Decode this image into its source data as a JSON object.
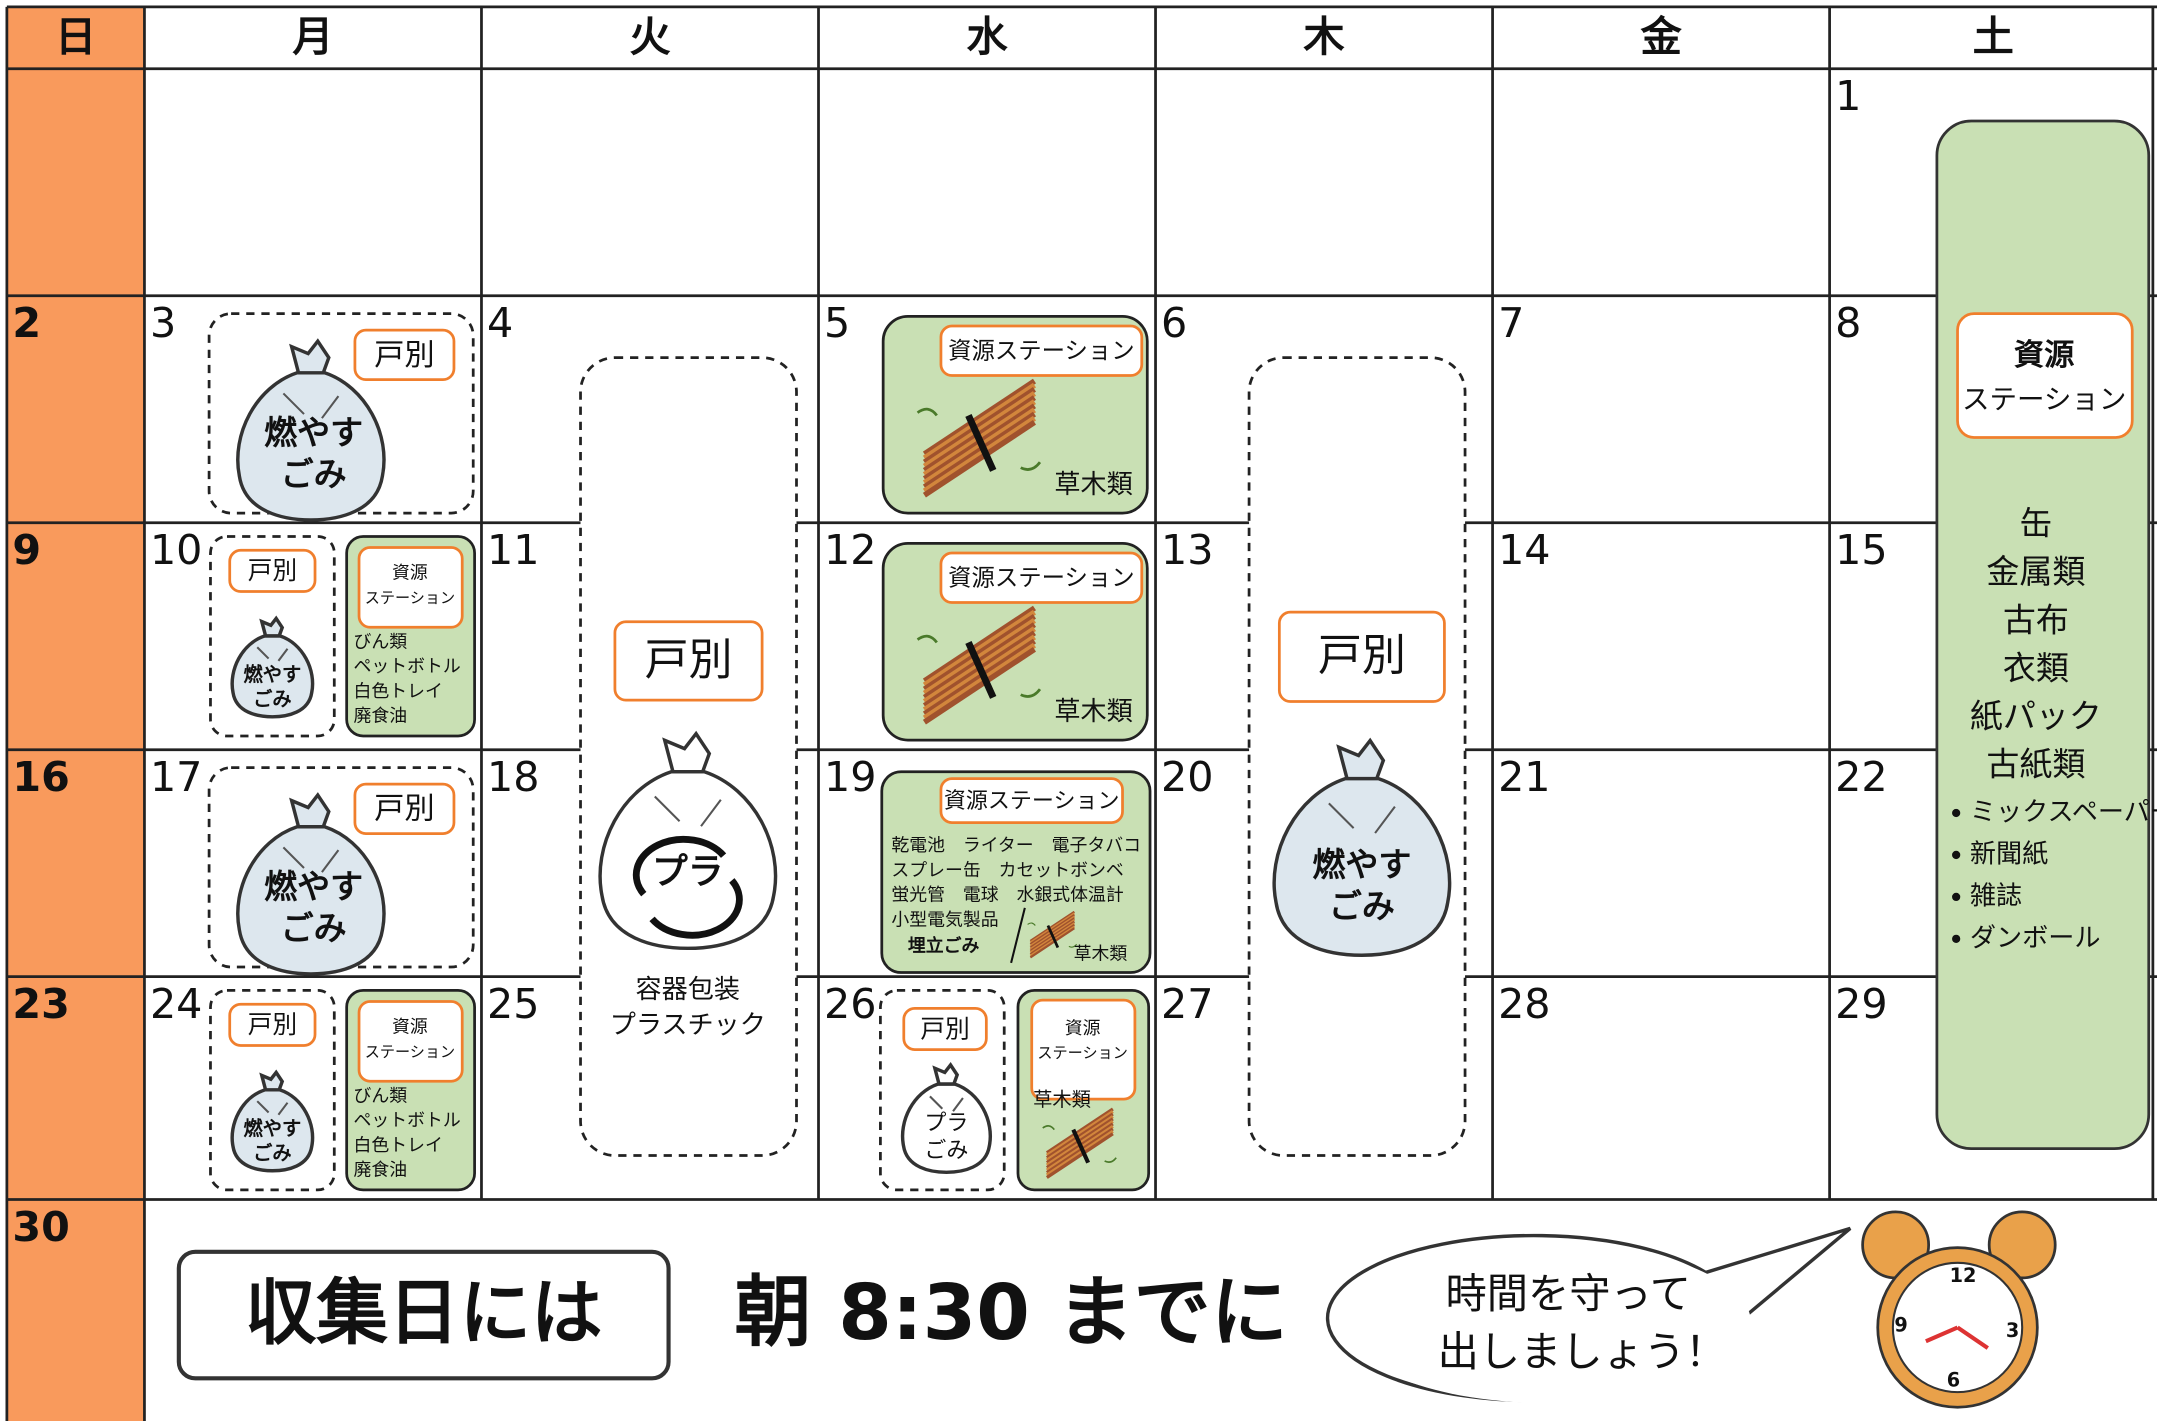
{
  "weekdays": [
    "日",
    "月",
    "火",
    "水",
    "木",
    "金",
    "土"
  ],
  "days": [
    1,
    2,
    3,
    4,
    5,
    6,
    7,
    8,
    9,
    10,
    11,
    12,
    13,
    14,
    15,
    16,
    17,
    18,
    19,
    20,
    21,
    22,
    23,
    24,
    25,
    26,
    27,
    28,
    29,
    30
  ],
  "events": [
    {
      "tag": "戸別",
      "bag": [
        "燃やす",
        "ごみ"
      ]
    },
    {
      "tag": "戸別",
      "bag": [
        "燃やす",
        "ごみ"
      ],
      "station": [
        "資源",
        "ステーション"
      ],
      "items": [
        "びん類",
        "ペットボトル",
        "白色トレイ",
        "廃食油"
      ]
    },
    {
      "tag": "戸別",
      "bag": [
        "燃やす",
        "ごみ"
      ]
    },
    {
      "tag": "戸別",
      "bag": [
        "燃やす",
        "ごみ"
      ],
      "station": [
        "資源",
        "ステーション"
      ],
      "items": [
        "びん類",
        "ペットボトル",
        "白色トレイ",
        "廃食油"
      ]
    },
    {
      "tag": "戸別",
      "mark": "プラ",
      "label": [
        "容器包装",
        "プラスチック"
      ]
    },
    {
      "tag": "戸別",
      "bag": [
        "燃やす",
        "ごみ"
      ]
    },
    {
      "station": "資源ステーション",
      "items": [
        "草木類"
      ]
    },
    {
      "station": "資源ステーション",
      "items": [
        "草木類"
      ]
    },
    {
      "station": "資源ステーション",
      "items": [
        "乾電池　ライター　電子タバコ",
        "スプレー缶　カセットボンベ",
        "蛍光管　電球　水銀式体温計",
        "小型電気製品",
        "埋立ごみ",
        "草木類"
      ]
    },
    {
      "tag": "戸別",
      "bag": [
        "プラ",
        "ごみ"
      ],
      "station": [
        "資源",
        "ステーション"
      ],
      "items": [
        "草木類"
      ]
    },
    {
      "station": [
        "資源",
        "ステーション"
      ],
      "items": [
        "缶",
        "金属類",
        "古布",
        "衣類",
        "紙パック",
        "古紙類"
      ],
      "subitems": [
        "ミックスペーパー",
        "新聞紙",
        "雑誌",
        "ダンボール"
      ]
    }
  ],
  "footer": {
    "label": "収集日には",
    "deadline": "朝 8:30 までに",
    "note": [
      "時間を守って",
      "出しましょう！"
    ],
    "clock": [
      "12",
      "3",
      "6",
      "9"
    ]
  }
}
